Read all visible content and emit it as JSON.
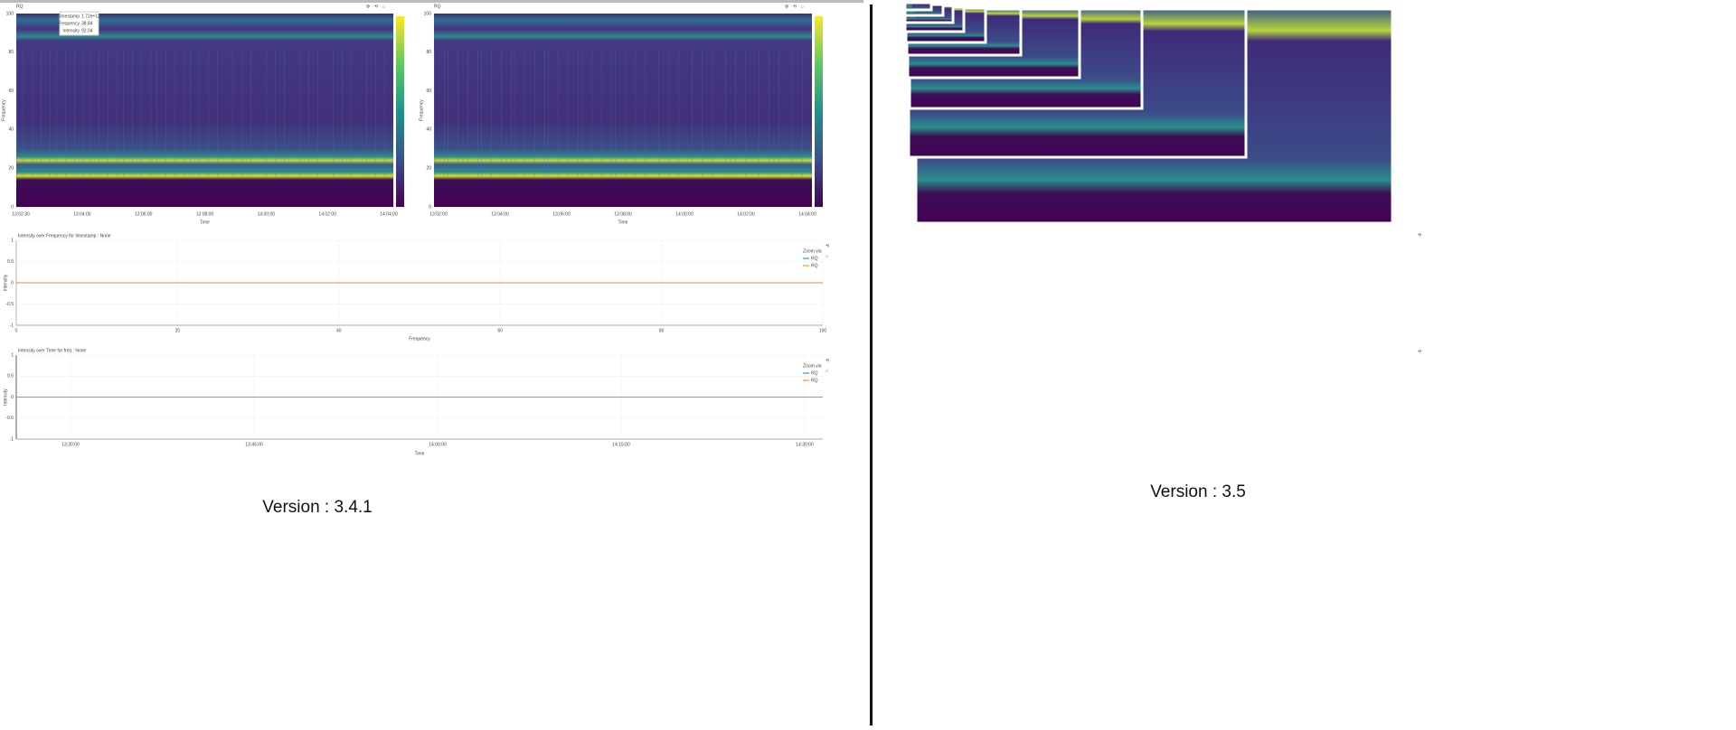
{
  "spectrograms": [
    {
      "title": "RQ",
      "x_label": "Time",
      "y_label": "Frequency",
      "yticks": [
        "0",
        "20",
        "40",
        "60",
        "80",
        "100"
      ],
      "xticks": [
        "13:02:30",
        "13:04:00",
        "13:06:00",
        "13:08:00",
        "14:00:00",
        "14:02:00",
        "14:04:00"
      ]
    },
    {
      "title": "RQ",
      "x_label": "Time",
      "y_label": "Frequency",
      "yticks": [
        "0",
        "20",
        "40",
        "60",
        "80",
        "100"
      ],
      "xticks": [
        "13:02:00",
        "13:04:00",
        "13:06:00",
        "13:08:00",
        "14:00:00",
        "14:02:00",
        "14:04:00"
      ]
    }
  ],
  "tooltip": {
    "rows": [
      [
        "Timestamp",
        "1.72e+12"
      ],
      [
        "Frequency",
        "38.84"
      ],
      [
        "Intensity",
        "92.04"
      ]
    ]
  },
  "line_plots": [
    {
      "type": "line",
      "title": "Intensity over Frequency for timestamp : None",
      "x_label": "Frequency",
      "y_label": "Intensity",
      "legend_title": "Zoom via",
      "xticks": [
        0,
        20,
        40,
        60,
        80,
        100
      ],
      "xlim": [
        0,
        100
      ],
      "yticks": [
        -1,
        -0.5,
        0,
        0.5,
        1
      ],
      "ylim": [
        -1,
        1
      ],
      "grid": true,
      "series": [
        {
          "name": "RQ",
          "color": "#1f77b4",
          "values": [
            0,
            0
          ]
        },
        {
          "name": "RQ",
          "color": "#ff7f0e",
          "values": [
            0,
            0
          ]
        }
      ]
    },
    {
      "type": "line",
      "title": "Intensity over Time for freq : None",
      "x_label": "Time",
      "y_label": "Intensity",
      "legend_title": "Zoom via",
      "xticks": [
        "13:30:00",
        "13:45:00",
        "14:00:00",
        "14:15:00",
        "14:30:00"
      ],
      "yticks": [
        -1,
        -0.5,
        0,
        0.5,
        1
      ],
      "ylim": [
        -1,
        1
      ],
      "grid": true,
      "series": [
        {
          "name": "RQ",
          "color": "#1f77b4",
          "values": [
            0,
            0
          ]
        },
        {
          "name": "RQ",
          "color": "#ff7f0e",
          "values": [
            0,
            0
          ]
        }
      ]
    }
  ],
  "versions": [
    "Version : 3.4.1",
    "Version : 3.5"
  ]
}
